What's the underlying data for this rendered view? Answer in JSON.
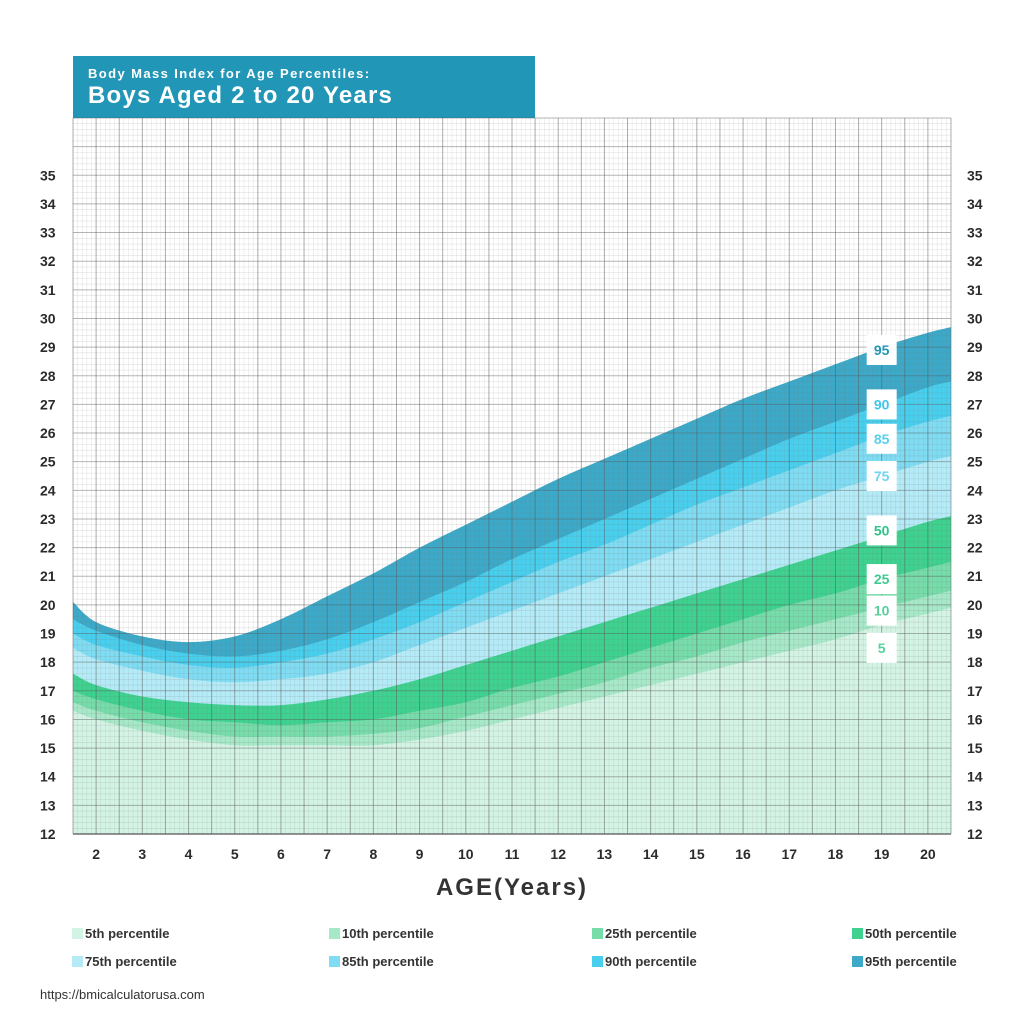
{
  "chart_data": {
    "type": "area",
    "title": "Boys Aged 2 to 20 Years",
    "subtitle": "Body Mass Index for Age Percentiles:",
    "xlabel": "AGE(Years)",
    "ylabel": "",
    "xlim": [
      1.5,
      20.5
    ],
    "ylim": [
      12,
      37
    ],
    "x_ticks": [
      "2",
      "3",
      "4",
      "5",
      "6",
      "7",
      "8",
      "9",
      "10",
      "11",
      "12",
      "13",
      "14",
      "15",
      "16",
      "17",
      "18",
      "19",
      "20"
    ],
    "y_ticks": [
      "12",
      "13",
      "14",
      "15",
      "16",
      "17",
      "18",
      "19",
      "20",
      "21",
      "22",
      "23",
      "24",
      "25",
      "26",
      "27",
      "28",
      "29",
      "30",
      "31",
      "32",
      "33",
      "34",
      "35"
    ],
    "x": [
      1.5,
      2,
      3,
      4,
      5,
      6,
      7,
      8,
      9,
      10,
      11,
      12,
      13,
      14,
      15,
      16,
      17,
      18,
      19,
      20,
      20.5
    ],
    "series": [
      {
        "name": "5th percentile",
        "percentile": "5",
        "color": "#d3f3e4",
        "values": [
          16.3,
          16.0,
          15.6,
          15.3,
          15.1,
          15.1,
          15.1,
          15.1,
          15.3,
          15.6,
          16.0,
          16.4,
          16.8,
          17.2,
          17.6,
          18.0,
          18.4,
          18.8,
          19.3,
          19.7,
          19.9
        ]
      },
      {
        "name": "10th percentile",
        "percentile": "10",
        "color": "#a6e8c8",
        "values": [
          16.6,
          16.3,
          15.9,
          15.6,
          15.4,
          15.4,
          15.4,
          15.5,
          15.7,
          16.1,
          16.5,
          16.9,
          17.3,
          17.8,
          18.2,
          18.7,
          19.1,
          19.5,
          19.9,
          20.3,
          20.5
        ]
      },
      {
        "name": "25th percentile",
        "percentile": "25",
        "color": "#76dcaa",
        "values": [
          17.0,
          16.7,
          16.3,
          16.0,
          15.9,
          15.8,
          15.9,
          16.0,
          16.3,
          16.6,
          17.1,
          17.5,
          18.0,
          18.5,
          19.0,
          19.5,
          20.0,
          20.4,
          20.9,
          21.3,
          21.5
        ]
      },
      {
        "name": "50th percentile",
        "percentile": "50",
        "color": "#3ed18f",
        "values": [
          17.6,
          17.2,
          16.8,
          16.6,
          16.5,
          16.5,
          16.7,
          17.0,
          17.4,
          17.9,
          18.4,
          18.9,
          19.4,
          19.9,
          20.4,
          20.9,
          21.4,
          21.9,
          22.4,
          22.9,
          23.1
        ]
      },
      {
        "name": "75th percentile",
        "percentile": "75",
        "color": "#b4ebf7",
        "values": [
          18.5,
          18.1,
          17.7,
          17.4,
          17.3,
          17.4,
          17.6,
          18.0,
          18.6,
          19.2,
          19.8,
          20.4,
          21.0,
          21.6,
          22.2,
          22.8,
          23.4,
          24.0,
          24.5,
          25.0,
          25.2
        ]
      },
      {
        "name": "85th percentile",
        "percentile": "85",
        "color": "#7fdcf2",
        "values": [
          19.0,
          18.6,
          18.2,
          17.9,
          17.8,
          18.0,
          18.3,
          18.8,
          19.4,
          20.1,
          20.8,
          21.5,
          22.1,
          22.8,
          23.5,
          24.1,
          24.7,
          25.3,
          25.9,
          26.4,
          26.6
        ]
      },
      {
        "name": "90th percentile",
        "percentile": "90",
        "color": "#49cfee",
        "values": [
          19.5,
          19.1,
          18.6,
          18.3,
          18.2,
          18.4,
          18.8,
          19.4,
          20.1,
          20.8,
          21.6,
          22.3,
          23.0,
          23.7,
          24.4,
          25.1,
          25.8,
          26.4,
          27.0,
          27.6,
          27.8
        ]
      },
      {
        "name": "95th percentile",
        "percentile": "95",
        "color": "#3da9c8",
        "values": [
          20.1,
          19.4,
          18.9,
          18.7,
          18.9,
          19.5,
          20.3,
          21.1,
          22.0,
          22.8,
          23.6,
          24.4,
          25.1,
          25.8,
          26.5,
          27.2,
          27.8,
          28.4,
          29.0,
          29.5,
          29.7
        ]
      }
    ],
    "end_labels": [
      {
        "text": "95",
        "y": 28.9,
        "color": "#2196b6"
      },
      {
        "text": "90",
        "y": 27.0,
        "color": "#3dc7e8"
      },
      {
        "text": "85",
        "y": 25.8,
        "color": "#57d0ee"
      },
      {
        "text": "75",
        "y": 24.5,
        "color": "#6fd5ef"
      },
      {
        "text": "50",
        "y": 22.6,
        "color": "#2fc487"
      },
      {
        "text": "25",
        "y": 20.9,
        "color": "#3fcb8e"
      },
      {
        "text": "10",
        "y": 19.8,
        "color": "#55d09a"
      },
      {
        "text": "5",
        "y": 18.5,
        "color": "#55d09a"
      }
    ],
    "end_label_x": 19,
    "grid": true,
    "legend_position": "bottom"
  },
  "source": "https://bmicalculatorusa.com"
}
